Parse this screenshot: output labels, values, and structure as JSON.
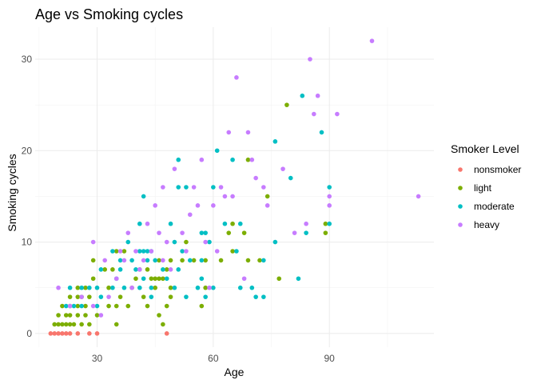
{
  "chart_data": {
    "type": "scatter",
    "title": "Age vs Smoking cycles",
    "xlabel": "Age",
    "ylabel": "Smoking cycles",
    "xlim": [
      14,
      117
    ],
    "ylim": [
      -1.5,
      33.5
    ],
    "x_ticks": [
      30,
      60,
      90
    ],
    "y_ticks": [
      0,
      10,
      20,
      30
    ],
    "x_minor_ticks": [
      15,
      45,
      75,
      105
    ],
    "y_minor_ticks": [
      5,
      15,
      25
    ],
    "grid": true,
    "legend": {
      "title": "Smoker Level",
      "position": "right"
    },
    "series": [
      {
        "name": "nonsmoker",
        "color": "#F8766D",
        "points": [
          [
            18,
            0
          ],
          [
            19,
            0
          ],
          [
            20,
            0
          ],
          [
            21,
            0
          ],
          [
            22,
            0
          ],
          [
            23,
            0
          ],
          [
            25,
            0
          ],
          [
            28,
            0
          ],
          [
            30,
            0
          ],
          [
            48,
            0
          ]
        ]
      },
      {
        "name": "light",
        "color": "#7CAE00",
        "points": [
          [
            19,
            1
          ],
          [
            20,
            1
          ],
          [
            21,
            1
          ],
          [
            22,
            1
          ],
          [
            23,
            1
          ],
          [
            24,
            1
          ],
          [
            26,
            1
          ],
          [
            28,
            1
          ],
          [
            35,
            1
          ],
          [
            47,
            1
          ],
          [
            20,
            2
          ],
          [
            22,
            2
          ],
          [
            23,
            2
          ],
          [
            25,
            2
          ],
          [
            27,
            2
          ],
          [
            30,
            2
          ],
          [
            46,
            2
          ],
          [
            21,
            3
          ],
          [
            23,
            3
          ],
          [
            25,
            3
          ],
          [
            27,
            3
          ],
          [
            33,
            3
          ],
          [
            35,
            3
          ],
          [
            38,
            3
          ],
          [
            43,
            3
          ],
          [
            48,
            3
          ],
          [
            57,
            3
          ],
          [
            23,
            4
          ],
          [
            25,
            4
          ],
          [
            26,
            4
          ],
          [
            28,
            4
          ],
          [
            36,
            4
          ],
          [
            42,
            4
          ],
          [
            49,
            4
          ],
          [
            25,
            5
          ],
          [
            27,
            5
          ],
          [
            33,
            5
          ],
          [
            39,
            5
          ],
          [
            45,
            5
          ],
          [
            49,
            5
          ],
          [
            58,
            5
          ],
          [
            29,
            6
          ],
          [
            40,
            6
          ],
          [
            44,
            6
          ],
          [
            45,
            6
          ],
          [
            46,
            6
          ],
          [
            47,
            6
          ],
          [
            77,
            6
          ],
          [
            32,
            7
          ],
          [
            34,
            7
          ],
          [
            41,
            7
          ],
          [
            43,
            7
          ],
          [
            48,
            7
          ],
          [
            29,
            8
          ],
          [
            46,
            8
          ],
          [
            49,
            8
          ],
          [
            52,
            8
          ],
          [
            55,
            8
          ],
          [
            58,
            8
          ],
          [
            62,
            8
          ],
          [
            69,
            8
          ],
          [
            72,
            8
          ],
          [
            35,
            9
          ],
          [
            37,
            9
          ],
          [
            65,
            9
          ],
          [
            53,
            10
          ],
          [
            64,
            11
          ],
          [
            68,
            11
          ],
          [
            89,
            11
          ],
          [
            65,
            12
          ],
          [
            89,
            12
          ],
          [
            74,
            15
          ],
          [
            69,
            19
          ],
          [
            79,
            25
          ]
        ]
      },
      {
        "name": "moderate",
        "color": "#00BFC4",
        "points": [
          [
            22,
            3
          ],
          [
            24,
            3
          ],
          [
            26,
            3
          ],
          [
            30,
            3
          ],
          [
            31,
            4
          ],
          [
            44,
            4
          ],
          [
            53,
            4
          ],
          [
            58,
            4
          ],
          [
            71,
            4
          ],
          [
            73,
            4
          ],
          [
            23,
            5
          ],
          [
            26,
            5
          ],
          [
            28,
            5
          ],
          [
            30,
            5
          ],
          [
            34,
            5
          ],
          [
            37,
            5
          ],
          [
            41,
            5
          ],
          [
            44,
            5
          ],
          [
            50,
            5
          ],
          [
            56,
            5
          ],
          [
            60,
            5
          ],
          [
            67,
            5
          ],
          [
            70,
            5
          ],
          [
            35,
            6
          ],
          [
            42,
            6
          ],
          [
            48,
            6
          ],
          [
            57,
            6
          ],
          [
            82,
            6
          ],
          [
            31,
            7
          ],
          [
            36,
            7
          ],
          [
            40,
            7
          ],
          [
            47,
            7
          ],
          [
            51,
            7
          ],
          [
            36,
            8
          ],
          [
            39,
            8
          ],
          [
            43,
            8
          ],
          [
            45,
            8
          ],
          [
            54,
            8
          ],
          [
            57,
            8
          ],
          [
            73,
            8
          ],
          [
            34,
            9
          ],
          [
            41,
            9
          ],
          [
            42,
            9
          ],
          [
            43,
            9
          ],
          [
            44,
            9
          ],
          [
            52,
            9
          ],
          [
            66,
            9
          ],
          [
            38,
            10
          ],
          [
            50,
            10
          ],
          [
            59,
            10
          ],
          [
            76,
            10
          ],
          [
            57,
            11
          ],
          [
            58,
            11
          ],
          [
            84,
            11
          ],
          [
            41,
            12
          ],
          [
            49,
            12
          ],
          [
            63,
            12
          ],
          [
            67,
            12
          ],
          [
            90,
            12
          ],
          [
            42,
            15
          ],
          [
            51,
            16
          ],
          [
            53,
            16
          ],
          [
            60,
            16
          ],
          [
            90,
            16
          ],
          [
            80,
            17
          ],
          [
            51,
            19
          ],
          [
            65,
            19
          ],
          [
            61,
            20
          ],
          [
            76,
            21
          ],
          [
            88,
            22
          ],
          [
            83,
            26
          ]
        ]
      },
      {
        "name": "heavy",
        "color": "#C77CFF",
        "points": [
          [
            20,
            5
          ],
          [
            23,
            3
          ],
          [
            26,
            4
          ],
          [
            29,
            3
          ],
          [
            31,
            2
          ],
          [
            33,
            4
          ],
          [
            35,
            6
          ],
          [
            37,
            8
          ],
          [
            39,
            5
          ],
          [
            41,
            7
          ],
          [
            43,
            12
          ],
          [
            44,
            9
          ],
          [
            46,
            11
          ],
          [
            48,
            10
          ],
          [
            49,
            7
          ],
          [
            52,
            11
          ],
          [
            56,
            14
          ],
          [
            58,
            10
          ],
          [
            61,
            9
          ],
          [
            63,
            15
          ],
          [
            65,
            15
          ],
          [
            68,
            6
          ],
          [
            29,
            10
          ],
          [
            32,
            8
          ],
          [
            36,
            9
          ],
          [
            38,
            11
          ],
          [
            40,
            9
          ],
          [
            42,
            8
          ],
          [
            45,
            14
          ],
          [
            47,
            16
          ],
          [
            50,
            18
          ],
          [
            55,
            16
          ],
          [
            57,
            19
          ],
          [
            60,
            14
          ],
          [
            62,
            16
          ],
          [
            64,
            22
          ],
          [
            66,
            28
          ],
          [
            69,
            22
          ],
          [
            70,
            19
          ],
          [
            73,
            16
          ],
          [
            78,
            18
          ],
          [
            81,
            11
          ],
          [
            85,
            30
          ],
          [
            86,
            24
          ],
          [
            87,
            26
          ],
          [
            90,
            14
          ],
          [
            92,
            24
          ],
          [
            101,
            32
          ],
          [
            113,
            15
          ],
          [
            47,
            8
          ],
          [
            54,
            13
          ],
          [
            53,
            9
          ],
          [
            59,
            5
          ],
          [
            71,
            17
          ],
          [
            74,
            14
          ],
          [
            90,
            15
          ],
          [
            84,
            12
          ]
        ]
      }
    ]
  }
}
